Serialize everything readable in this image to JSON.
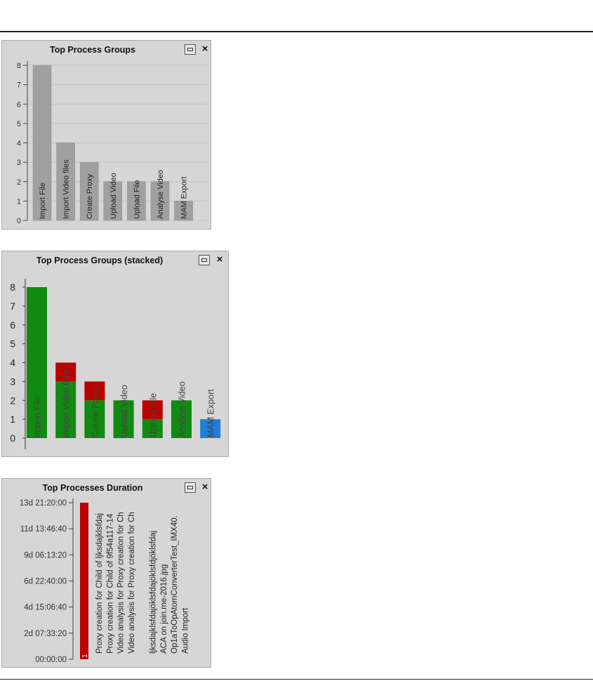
{
  "panels": [
    {
      "title": "Top Process Groups",
      "maximize_icon": "maximize-icon",
      "close_label": "×"
    },
    {
      "title": "Top Process Groups (stacked)",
      "maximize_icon": "maximize-icon",
      "close_label": "×"
    },
    {
      "title": "Top Processes Duration",
      "maximize_icon": "maximize-icon",
      "close_label": "×"
    }
  ],
  "chart_data": [
    {
      "type": "bar",
      "title": "Top Process Groups",
      "categories": [
        "Import File",
        "Import Video files",
        "Create Proxy",
        "Upload Video",
        "Upload File",
        "Analyse Video",
        "MAM Export"
      ],
      "values": [
        8,
        4,
        3,
        2,
        2,
        2,
        1
      ],
      "ylim": [
        0,
        8
      ],
      "yticks": [
        "0",
        "1",
        "2",
        "3",
        "4",
        "5",
        "6",
        "7",
        "8"
      ],
      "grid": true,
      "color": "#a0a0a0"
    },
    {
      "type": "bar",
      "title": "Top Process Groups (stacked)",
      "stacked": true,
      "categories": [
        "Import File",
        "Import Video files",
        "Create Proxy",
        "Upload Video",
        "Upload File",
        "Analyse Video",
        "MAM Export"
      ],
      "series": [
        {
          "color": "#108a10",
          "values": [
            8,
            3,
            2,
            2,
            1,
            2,
            0
          ]
        },
        {
          "color": "#bb0000",
          "values": [
            0,
            1,
            1,
            0,
            1,
            0,
            0
          ]
        },
        {
          "color": "#1f7fd6",
          "values": [
            0,
            0,
            0,
            0,
            0,
            0,
            1
          ]
        }
      ],
      "ylim": [
        0,
        8
      ],
      "yticks": [
        "0",
        "1",
        "2",
        "3",
        "4",
        "5",
        "6",
        "7",
        "8"
      ],
      "grid": false
    },
    {
      "type": "bar",
      "title": "Top Processes Duration",
      "categories": [
        "Proxy creation for Child of ljksdajklsfdaj",
        "Proxy creation for Child of 9f54a117-14",
        "Video analysis for Proxy creation for Ch",
        "Video analysis for Proxy creation for Ch",
        "",
        "ljksdajklsfdajöklsfdajöklsfdjöklsfdaj",
        "ACA on join.me-2016.jpg",
        "Op1aToOpAtomConverterTest_IMX40.",
        "Audio Import"
      ],
      "values_seconds": [
        1200000,
        0,
        0,
        0,
        0,
        0,
        0,
        0,
        0
      ],
      "bar_label": "1",
      "ylim_seconds": [
        0,
        1200000
      ],
      "yticks": [
        "00:00:00",
        "2d 07:33:20",
        "4d 15:06:40",
        "6d 22:40:00",
        "9d 06:13:20",
        "11d 13:46:40",
        "13d 21:20:00"
      ],
      "color": "#bb0000"
    }
  ]
}
